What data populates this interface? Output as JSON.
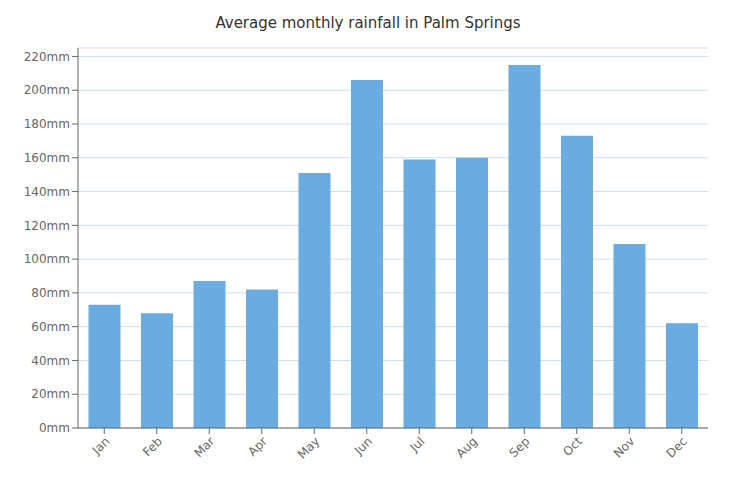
{
  "chart_data": {
    "type": "bar",
    "title": "Average monthly rainfall in Palm Springs",
    "categories": [
      "Jan",
      "Feb",
      "Mar",
      "Apr",
      "May",
      "Jun",
      "Jul",
      "Aug",
      "Sep",
      "Oct",
      "Nov",
      "Dec"
    ],
    "values": [
      73,
      68,
      87,
      82,
      151,
      206,
      159,
      160,
      215,
      173,
      109,
      62
    ],
    "color": "#6aace0",
    "ylim": [
      0,
      225
    ],
    "yticks": [
      {
        "value": 0,
        "label": "0mm"
      },
      {
        "value": 20,
        "label": "20mm"
      },
      {
        "value": 40,
        "label": "40mm"
      },
      {
        "value": 60,
        "label": "60mm"
      },
      {
        "value": 80,
        "label": "80mm"
      },
      {
        "value": 100,
        "label": "100mm"
      },
      {
        "value": 120,
        "label": "120mm"
      },
      {
        "value": 140,
        "label": "140mm"
      },
      {
        "value": 160,
        "label": "160mm"
      },
      {
        "value": 180,
        "label": "180mm"
      },
      {
        "value": 200,
        "label": "200mm"
      },
      {
        "value": 220,
        "label": "220mm"
      }
    ],
    "grid": true
  }
}
